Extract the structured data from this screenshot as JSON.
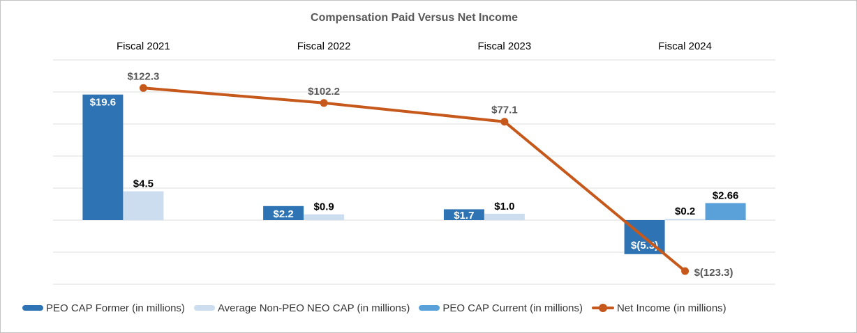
{
  "chart_data": {
    "type": "bar",
    "title": "Compensation Paid Versus Net Income",
    "categories": [
      "Fiscal 2021",
      "Fiscal 2022",
      "Fiscal 2023",
      "Fiscal 2024"
    ],
    "series": [
      {
        "name": "PEO CAP Former (in millions)",
        "type": "bar",
        "color": "#2E74B5",
        "values": [
          19.6,
          2.2,
          1.7,
          -5.3
        ],
        "labels": [
          "$19.6",
          "$2.2",
          "$1.7",
          "$(5.3)"
        ],
        "label_style": "inside-white"
      },
      {
        "name": "Average Non-PEO NEO CAP (in millions)",
        "type": "bar",
        "color": "#CBDDEF",
        "values": [
          4.5,
          0.9,
          1.0,
          0.2
        ],
        "labels": [
          "$4.5",
          "$0.9",
          "$1.0",
          "$0.2"
        ],
        "label_style": "outside-black"
      },
      {
        "name": "PEO CAP Current (in millions)",
        "type": "bar",
        "color": "#59A1D8",
        "values": [
          null,
          null,
          null,
          2.66
        ],
        "labels": [
          null,
          null,
          null,
          "$2.66"
        ],
        "label_style": "outside-black"
      },
      {
        "name": "Net Income (in millions)",
        "type": "line",
        "color": "#C5581A",
        "values": [
          122.3,
          102.2,
          77.1,
          -123.3
        ],
        "labels": [
          "$122.3",
          "$102.2",
          "$77.1",
          "$(123.3)"
        ],
        "label_placement": [
          "above",
          "above",
          "above",
          "right"
        ],
        "label_color": "#595959"
      }
    ],
    "bar_axis": {
      "min": -10,
      "max": 25,
      "grid_step": 5
    },
    "line_axis": {
      "min": -141,
      "max": 160
    },
    "grid": true,
    "legend_position": "bottom",
    "colors": {
      "gridline": "#DCDCDC",
      "title": "#595959",
      "category_label": "#000000",
      "bar_label_inside": "#FFFFFF",
      "bar_label_outside": "#000000",
      "legend_text": "#373737",
      "background": "#FFFFFF",
      "border": "#C4C4C4"
    }
  }
}
